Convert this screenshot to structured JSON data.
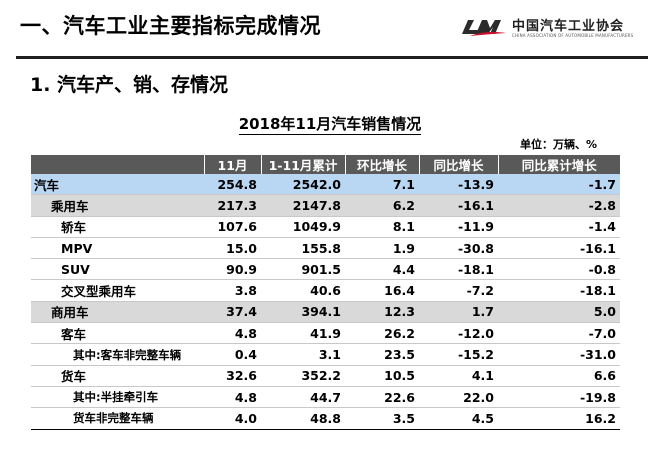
{
  "slide": {
    "title": "一、汽车工业主要指标完成情况",
    "section": "1. 汽车产、销、存情况"
  },
  "logo": {
    "cn": "中国汽车工业协会",
    "en": "CHINA ASSOCIATION OF AUTOMOBILE MANUFACTURERS",
    "icon": "caam-logo-icon"
  },
  "table": {
    "title": "2018年11月汽车销售情况",
    "unit": "单位：万辆、%",
    "headers": [
      "",
      "11月",
      "1-11月累计",
      "环比增长",
      "同比增长",
      "同比累计增长"
    ],
    "rows": [
      {
        "name": "汽车",
        "level": 0,
        "style": "total",
        "values": [
          "254.8",
          "2542.0",
          "7.1",
          "-13.9",
          "-1.7"
        ]
      },
      {
        "name": "乘用车",
        "level": 1,
        "style": "sub",
        "values": [
          "217.3",
          "2147.8",
          "6.2",
          "-16.1",
          "-2.8"
        ]
      },
      {
        "name": "轿车",
        "level": 2,
        "style": "plain",
        "values": [
          "107.6",
          "1049.9",
          "8.1",
          "-11.9",
          "-1.4"
        ]
      },
      {
        "name": "MPV",
        "level": 2,
        "style": "plain",
        "values": [
          "15.0",
          "155.8",
          "1.9",
          "-30.8",
          "-16.1"
        ]
      },
      {
        "name": "SUV",
        "level": 2,
        "style": "plain",
        "values": [
          "90.9",
          "901.5",
          "4.4",
          "-18.1",
          "-0.8"
        ]
      },
      {
        "name": "交叉型乘用车",
        "level": 2,
        "style": "plain",
        "values": [
          "3.8",
          "40.6",
          "16.4",
          "-7.2",
          "-18.1"
        ]
      },
      {
        "name": "商用车",
        "level": 1,
        "style": "sub",
        "values": [
          "37.4",
          "394.1",
          "12.3",
          "1.7",
          "5.0"
        ]
      },
      {
        "name": "客车",
        "level": 2,
        "style": "plain",
        "values": [
          "4.8",
          "41.9",
          "26.2",
          "-12.0",
          "-7.0"
        ]
      },
      {
        "name": "其中:客车非完整车辆",
        "level": 3,
        "style": "plain",
        "values": [
          "0.4",
          "3.1",
          "23.5",
          "-15.2",
          "-31.0"
        ]
      },
      {
        "name": "货车",
        "level": 2,
        "style": "plain",
        "values": [
          "32.6",
          "352.2",
          "10.5",
          "4.1",
          "6.6"
        ]
      },
      {
        "name": "其中:半挂牵引车",
        "level": 3,
        "style": "plain",
        "values": [
          "4.8",
          "44.7",
          "22.6",
          "22.0",
          "-19.8"
        ]
      },
      {
        "name": "货车非完整车辆",
        "level": 3,
        "style": "plain",
        "values": [
          "4.0",
          "48.8",
          "3.5",
          "4.5",
          "16.2"
        ]
      }
    ]
  }
}
